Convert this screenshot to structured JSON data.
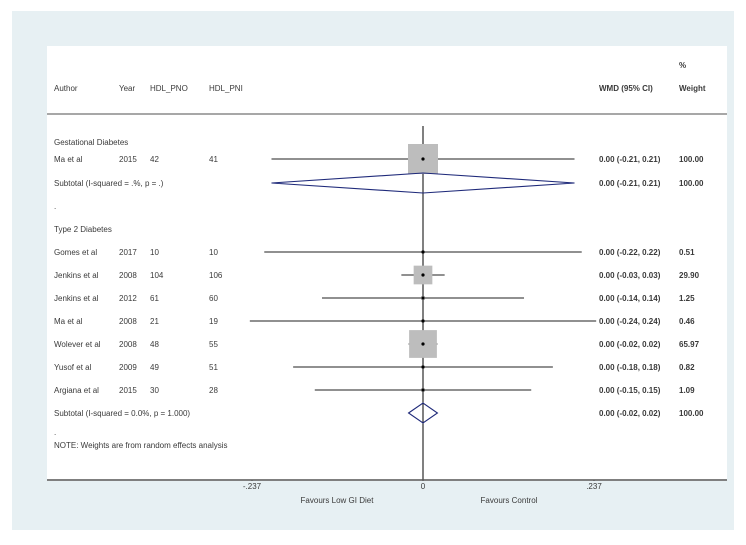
{
  "chart_data": {
    "type": "forest",
    "columns": {
      "author": "Author",
      "year": "Year",
      "hdl_pno": "HDL_PNO",
      "hdl_pni": "HDL_PNI",
      "wmd": "WMD (95% CI)",
      "weight_pct": "%",
      "weight": "Weight"
    },
    "groups": [
      {
        "name": "Gestational Diabetes",
        "studies": [
          {
            "author": "Ma et al",
            "year": "2015",
            "hdl_pno": "42",
            "hdl_pni": "41",
            "estimate": 0.0,
            "lower": -0.21,
            "upper": 0.21,
            "ci_text": "0.00 (-0.21, 0.21)",
            "weight": 100.0,
            "weight_text": "100.00"
          }
        ],
        "subtotal": {
          "label": "Subtotal  (I-squared = .%, p = .)",
          "estimate": 0.0,
          "lower": -0.21,
          "upper": 0.21,
          "ci_text": "0.00 (-0.21, 0.21)",
          "weight_text": "100.00"
        }
      },
      {
        "name": "Type 2 Diabetes",
        "studies": [
          {
            "author": "Gomes et al",
            "year": "2017",
            "hdl_pno": "10",
            "hdl_pni": "10",
            "estimate": 0.0,
            "lower": -0.22,
            "upper": 0.22,
            "ci_text": "0.00 (-0.22, 0.22)",
            "weight": 0.51,
            "weight_text": "0.51"
          },
          {
            "author": "Jenkins et al",
            "year": "2008",
            "hdl_pno": "104",
            "hdl_pni": "106",
            "estimate": 0.0,
            "lower": -0.03,
            "upper": 0.03,
            "ci_text": "0.00 (-0.03, 0.03)",
            "weight": 29.9,
            "weight_text": "29.90"
          },
          {
            "author": "Jenkins et al",
            "year": "2012",
            "hdl_pno": "61",
            "hdl_pni": "60",
            "estimate": 0.0,
            "lower": -0.14,
            "upper": 0.14,
            "ci_text": "0.00 (-0.14, 0.14)",
            "weight": 1.25,
            "weight_text": "1.25"
          },
          {
            "author": "Ma et al",
            "year": "2008",
            "hdl_pno": "21",
            "hdl_pni": "19",
            "estimate": 0.0,
            "lower": -0.24,
            "upper": 0.24,
            "ci_text": "0.00 (-0.24, 0.24)",
            "weight": 0.46,
            "weight_text": "0.46"
          },
          {
            "author": "Wolever et al",
            "year": "2008",
            "hdl_pno": "48",
            "hdl_pni": "55",
            "estimate": 0.0,
            "lower": -0.02,
            "upper": 0.02,
            "ci_text": "0.00 (-0.02, 0.02)",
            "weight": 65.97,
            "weight_text": "65.97"
          },
          {
            "author": "Yusof et al",
            "year": "2009",
            "hdl_pno": "49",
            "hdl_pni": "51",
            "estimate": 0.0,
            "lower": -0.18,
            "upper": 0.18,
            "ci_text": "0.00 (-0.18, 0.18)",
            "weight": 0.82,
            "weight_text": "0.82"
          },
          {
            "author": "Argiana et al",
            "year": "2015",
            "hdl_pno": "30",
            "hdl_pni": "28",
            "estimate": 0.0,
            "lower": -0.15,
            "upper": 0.15,
            "ci_text": "0.00 (-0.15, 0.15)",
            "weight": 1.09,
            "weight_text": "1.09"
          }
        ],
        "subtotal": {
          "label": "Subtotal  (I-squared = 0.0%, p = 1.000)",
          "estimate": 0.0,
          "lower": -0.02,
          "upper": 0.02,
          "ci_text": "0.00 (-0.02, 0.02)",
          "weight_text": "100.00"
        }
      }
    ],
    "note": "NOTE: Weights are from random effects analysis",
    "x_axis": {
      "min": -0.237,
      "max": 0.237,
      "ticks": [
        {
          "value": -0.237,
          "label": "-.237"
        },
        {
          "value": 0,
          "label": "0"
        },
        {
          "value": 0.237,
          "label": ".237"
        }
      ],
      "left_label": "Favours Low GI Diet",
      "right_label": "Favours Control"
    },
    "colors": {
      "background": "#e7f0f3",
      "ci_line": "#6b6b6b",
      "weight_box": "#bdbdbd",
      "diamond": "#1f2a7a",
      "axis": "#555555"
    }
  }
}
